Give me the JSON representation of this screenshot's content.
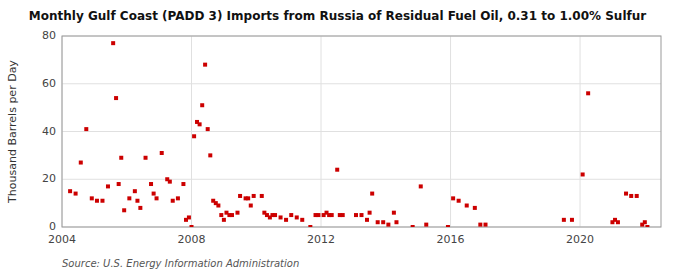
{
  "chart_data": {
    "type": "scatter",
    "title": "Monthly Gulf Coast (PADD 3) Imports from Russia of Residual Fuel Oil, 0.31 to 1.00% Sulfur",
    "y_label": "Thousand Barrels per Day",
    "annotations": [
      "Source: U.S. Energy Information Administration"
    ],
    "color": "#cc0000",
    "marker": "square",
    "grid": true,
    "xlim": [
      2004.0,
      2022.5
    ],
    "xticks": [
      2004,
      2008,
      2012,
      2016,
      2020
    ],
    "ylim": [
      0,
      80
    ],
    "yticks": [
      0,
      20,
      40,
      60,
      80
    ],
    "x": [
      2004.25,
      2004.42,
      2004.58,
      2004.75,
      2004.92,
      2005.08,
      2005.25,
      2005.42,
      2005.58,
      2005.67,
      2005.75,
      2005.83,
      2005.92,
      2006.08,
      2006.25,
      2006.33,
      2006.42,
      2006.58,
      2006.75,
      2006.83,
      2006.92,
      2007.08,
      2007.25,
      2007.33,
      2007.42,
      2007.58,
      2007.75,
      2007.83,
      2007.92,
      2008.0,
      2008.08,
      2008.17,
      2008.25,
      2008.33,
      2008.42,
      2008.5,
      2008.58,
      2008.67,
      2008.75,
      2008.83,
      2008.92,
      2009.0,
      2009.08,
      2009.17,
      2009.25,
      2009.42,
      2009.5,
      2009.67,
      2009.75,
      2009.83,
      2009.92,
      2010.17,
      2010.25,
      2010.33,
      2010.42,
      2010.5,
      2010.58,
      2010.75,
      2010.92,
      2011.08,
      2011.25,
      2011.42,
      2011.67,
      2011.83,
      2011.92,
      2012.08,
      2012.17,
      2012.25,
      2012.33,
      2012.5,
      2012.58,
      2012.67,
      2013.08,
      2013.25,
      2013.42,
      2013.5,
      2013.58,
      2013.75,
      2013.92,
      2014.08,
      2014.25,
      2014.33,
      2014.83,
      2015.08,
      2015.25,
      2015.92,
      2016.08,
      2016.25,
      2016.5,
      2016.75,
      2016.92,
      2017.08,
      2019.5,
      2019.75,
      2020.08,
      2020.25,
      2021.0,
      2021.08,
      2021.17,
      2021.42,
      2021.58,
      2021.75,
      2021.92,
      2022.0,
      2022.08
    ],
    "values": [
      15,
      14,
      27,
      41,
      12,
      11,
      11,
      17,
      77,
      54,
      18,
      29,
      7,
      12,
      15,
      11,
      8,
      29,
      18,
      14,
      12,
      31,
      20,
      19,
      11,
      12,
      18,
      3,
      4,
      0,
      38,
      44,
      43,
      51,
      68,
      41,
      30,
      11,
      10,
      9,
      5,
      3,
      6,
      5,
      5,
      6,
      13,
      12,
      12,
      9,
      13,
      13,
      6,
      5,
      4,
      5,
      5,
      4,
      3,
      5,
      4,
      3,
      0,
      5,
      5,
      5,
      6,
      5,
      5,
      24,
      5,
      5,
      5,
      5,
      3,
      6,
      14,
      2,
      2,
      1,
      6,
      2,
      0,
      17,
      1,
      0,
      12,
      11,
      9,
      8,
      1,
      1,
      3,
      3,
      22,
      56,
      2,
      3,
      2,
      14,
      13,
      13,
      1,
      2,
      0
    ]
  }
}
